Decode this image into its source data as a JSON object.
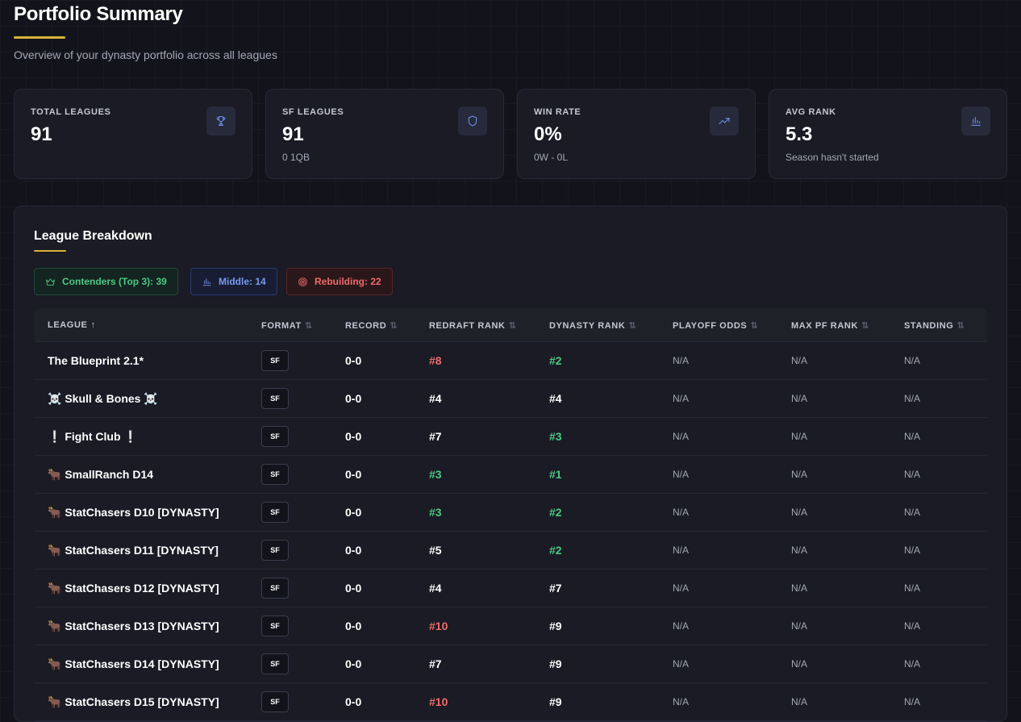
{
  "header": {
    "title": "Portfolio Summary",
    "subtitle": "Overview of your dynasty portfolio across all leagues"
  },
  "stats": [
    {
      "label": "TOTAL LEAGUES",
      "value": "91",
      "sub": "",
      "icon": "trophy-icon"
    },
    {
      "label": "SF LEAGUES",
      "value": "91",
      "sub": "0 1QB",
      "icon": "shield-icon"
    },
    {
      "label": "WIN RATE",
      "value": "0%",
      "sub": "0W - 0L",
      "icon": "trending-up-icon"
    },
    {
      "label": "AVG RANK",
      "value": "5.3",
      "sub": "Season hasn't started",
      "icon": "bar-chart-icon"
    }
  ],
  "breakdown": {
    "title": "League Breakdown",
    "filters": [
      {
        "label": "Contenders (Top 3): 39",
        "icon": "crown-icon",
        "color": "#4cc985"
      },
      {
        "label": "Middle: 14",
        "icon": "bar-chart-icon",
        "color": "#7899f0"
      },
      {
        "label": "Rebuilding: 22",
        "icon": "target-icon",
        "color": "#ef6a6a"
      }
    ],
    "columns": [
      {
        "label": "LEAGUE",
        "sort": "↑",
        "active": true
      },
      {
        "label": "FORMAT",
        "sort": "⇅",
        "active": false
      },
      {
        "label": "RECORD",
        "sort": "⇅",
        "active": false
      },
      {
        "label": "REDRAFT RANK",
        "sort": "⇅",
        "active": false
      },
      {
        "label": "DYNASTY RANK",
        "sort": "⇅",
        "active": false
      },
      {
        "label": "PLAYOFF ODDS",
        "sort": "⇅",
        "active": false
      },
      {
        "label": "MAX PF RANK",
        "sort": "⇅",
        "active": false
      },
      {
        "label": "STANDING",
        "sort": "⇅",
        "active": false
      }
    ],
    "colors": {
      "good": "#4cc985",
      "bad": "#ef6a6a",
      "neutral": "#ffffff"
    },
    "rows": [
      {
        "league": "The Blueprint 2.1*",
        "format": "SF",
        "record": "0-0",
        "redraft": "#8",
        "redraft_tone": "bad",
        "dynasty": "#2",
        "dynasty_tone": "good",
        "playoff": "N/A",
        "maxpf": "N/A",
        "standing": "N/A"
      },
      {
        "league": "☠️ Skull & Bones ☠️",
        "format": "SF",
        "record": "0-0",
        "redraft": "#4",
        "redraft_tone": "neutral",
        "dynasty": "#4",
        "dynasty_tone": "neutral",
        "playoff": "N/A",
        "maxpf": "N/A",
        "standing": "N/A"
      },
      {
        "league": "❕ Fight Club ❕",
        "format": "SF",
        "record": "0-0",
        "redraft": "#7",
        "redraft_tone": "neutral",
        "dynasty": "#3",
        "dynasty_tone": "good",
        "playoff": "N/A",
        "maxpf": "N/A",
        "standing": "N/A"
      },
      {
        "league": "🐂 SmallRanch D14",
        "format": "SF",
        "record": "0-0",
        "redraft": "#3",
        "redraft_tone": "good",
        "dynasty": "#1",
        "dynasty_tone": "good",
        "playoff": "N/A",
        "maxpf": "N/A",
        "standing": "N/A"
      },
      {
        "league": "🐂 StatChasers D10 [DYNASTY]",
        "format": "SF",
        "record": "0-0",
        "redraft": "#3",
        "redraft_tone": "good",
        "dynasty": "#2",
        "dynasty_tone": "good",
        "playoff": "N/A",
        "maxpf": "N/A",
        "standing": "N/A"
      },
      {
        "league": "🐂 StatChasers D11 [DYNASTY]",
        "format": "SF",
        "record": "0-0",
        "redraft": "#5",
        "redraft_tone": "neutral",
        "dynasty": "#2",
        "dynasty_tone": "good",
        "playoff": "N/A",
        "maxpf": "N/A",
        "standing": "N/A"
      },
      {
        "league": "🐂 StatChasers D12 [DYNASTY]",
        "format": "SF",
        "record": "0-0",
        "redraft": "#4",
        "redraft_tone": "neutral",
        "dynasty": "#7",
        "dynasty_tone": "neutral",
        "playoff": "N/A",
        "maxpf": "N/A",
        "standing": "N/A"
      },
      {
        "league": "🐂 StatChasers D13 [DYNASTY]",
        "format": "SF",
        "record": "0-0",
        "redraft": "#10",
        "redraft_tone": "bad",
        "dynasty": "#9",
        "dynasty_tone": "neutral",
        "playoff": "N/A",
        "maxpf": "N/A",
        "standing": "N/A"
      },
      {
        "league": "🐂 StatChasers D14 [DYNASTY]",
        "format": "SF",
        "record": "0-0",
        "redraft": "#7",
        "redraft_tone": "neutral",
        "dynasty": "#9",
        "dynasty_tone": "neutral",
        "playoff": "N/A",
        "maxpf": "N/A",
        "standing": "N/A"
      },
      {
        "league": "🐂 StatChasers D15 [DYNASTY]",
        "format": "SF",
        "record": "0-0",
        "redraft": "#10",
        "redraft_tone": "bad",
        "dynasty": "#9",
        "dynasty_tone": "neutral",
        "playoff": "N/A",
        "maxpf": "N/A",
        "standing": "N/A"
      }
    ]
  }
}
